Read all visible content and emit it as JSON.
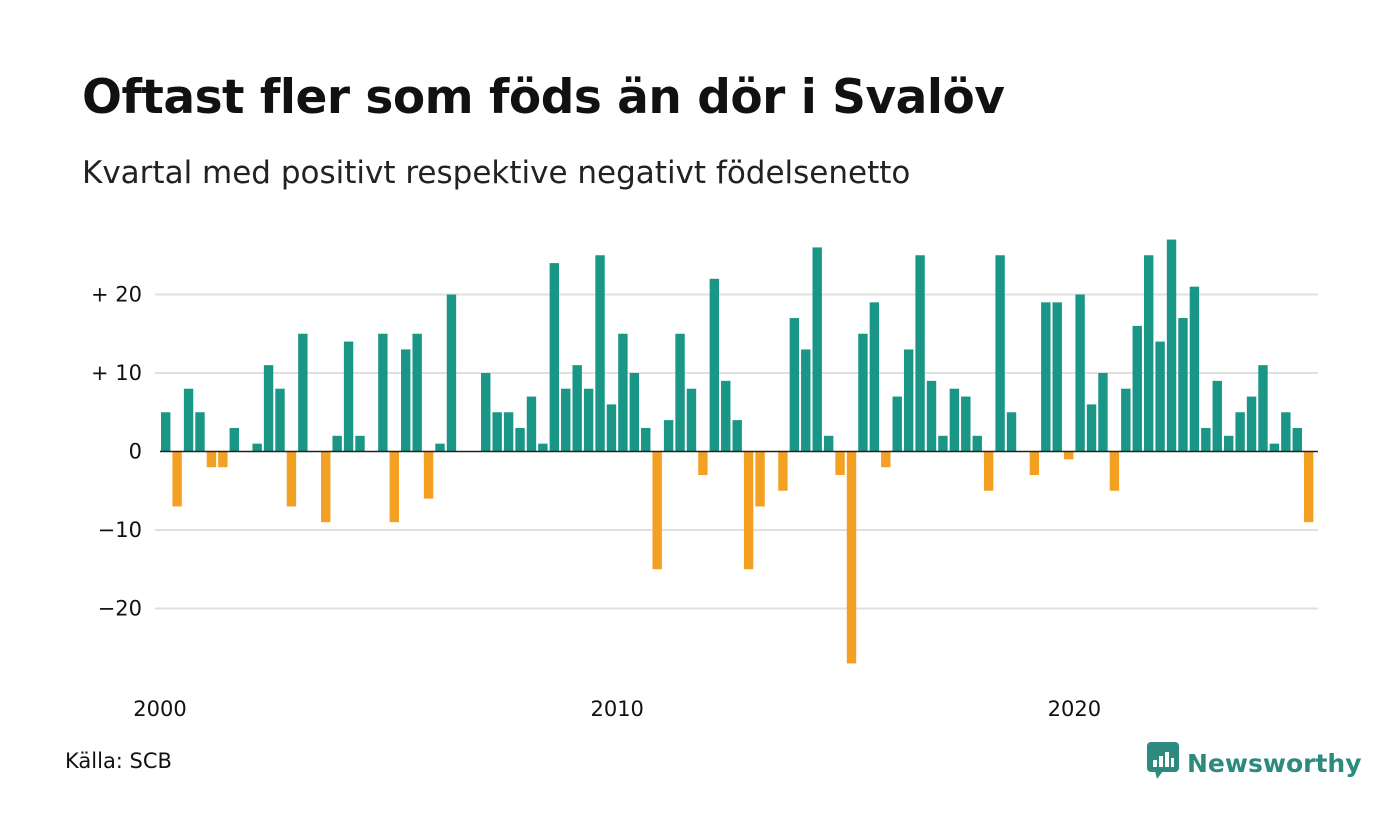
{
  "title": "Oftast fler som föds än dör i Svalöv",
  "subtitle": "Kvartal med positivt respektive negativt födelsenetto",
  "source": "Källa: SCB",
  "brand": "Newsworthy",
  "icons": {
    "logo": "chart-bubble-icon"
  },
  "colors": {
    "positive": "#1a9687",
    "negative": "#f4a123",
    "grid": "#e0e0e0",
    "brand": "#2d8a7e"
  },
  "chart_data": {
    "type": "bar",
    "x_start": "2000 Q1",
    "quarters_per_year": 4,
    "values": [
      5,
      -7,
      8,
      5,
      -2,
      -2,
      3,
      0,
      1,
      11,
      8,
      -7,
      15,
      0,
      -9,
      2,
      14,
      2,
      0,
      15,
      -9,
      13,
      15,
      -6,
      1,
      20,
      0,
      0,
      10,
      5,
      5,
      3,
      7,
      1,
      24,
      8,
      11,
      8,
      25,
      6,
      15,
      10,
      3,
      -15,
      4,
      15,
      8,
      -3,
      22,
      9,
      4,
      -15,
      -7,
      0,
      -5,
      17,
      13,
      26,
      2,
      -3,
      -27,
      15,
      19,
      -2,
      7,
      13,
      25,
      9,
      2,
      8,
      7,
      2,
      -5,
      25,
      5,
      0,
      -3,
      19,
      19,
      -1,
      20,
      6,
      10,
      -5,
      8,
      16,
      25,
      14,
      27,
      17,
      21,
      3,
      9,
      2,
      5,
      7,
      11,
      1,
      5,
      3,
      -9
    ],
    "y_ticks": [
      20,
      10,
      0,
      -10,
      -20
    ],
    "y_tick_labels": [
      "+ 20",
      "+ 10",
      "0",
      "−10",
      "−20"
    ],
    "x_ticks": [
      2000,
      2010,
      2020
    ],
    "x_tick_labels": [
      "2000",
      "2010",
      "2020"
    ],
    "ylim": [
      -28,
      28
    ],
    "grid": true,
    "legend": "none"
  }
}
